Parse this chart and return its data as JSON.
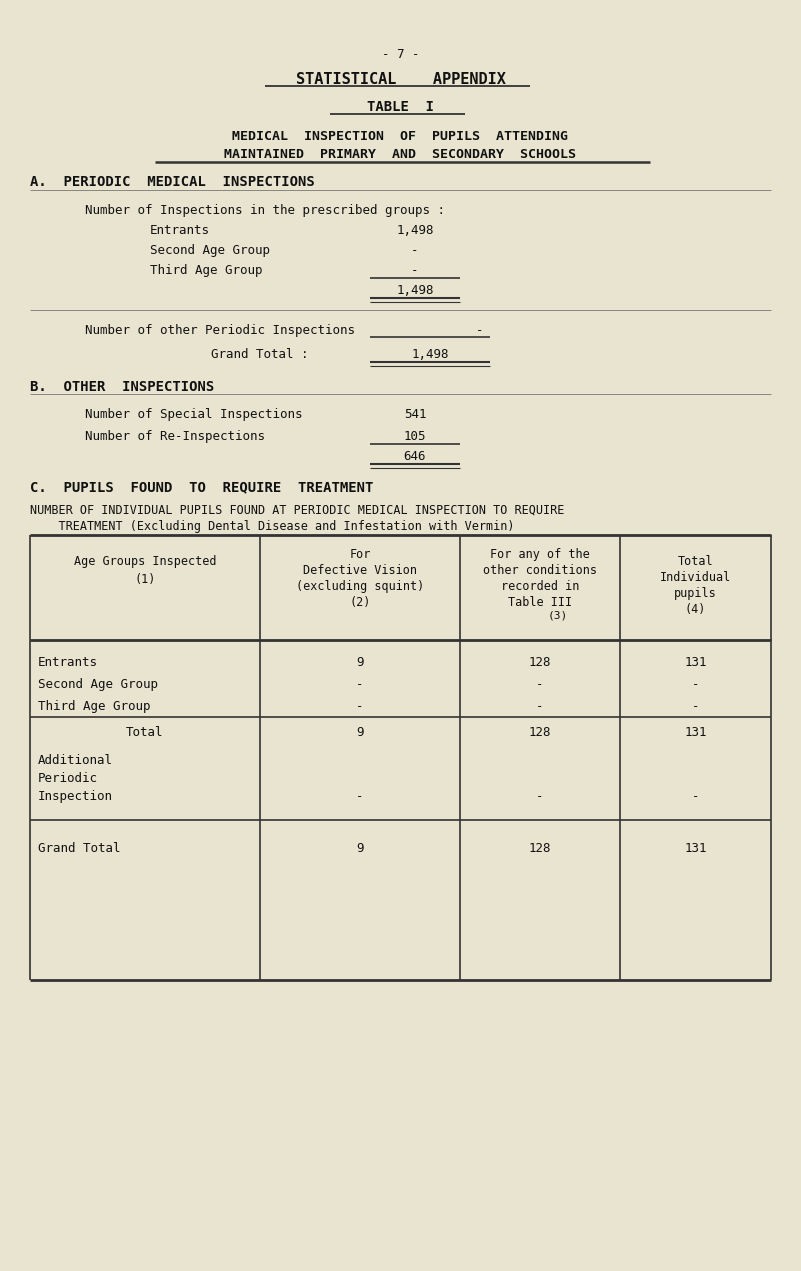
{
  "bg_color": "#e8e4d0",
  "text_color": "#1a1a1a",
  "page_num": "- 7 -",
  "title1": "STATISTICAL    APPENDIX",
  "title2": "TABLE  I",
  "subtitle1": "MEDICAL  INSPECTION  OF  PUPILS  ATTENDING",
  "subtitle2": "MAINTAINED  PRIMARY  AND  SECONDARY  SCHOOLS",
  "section_a": "A.  PERIODIC  MEDICAL  INSPECTIONS",
  "group_header": "Number of Inspections in the prescribed groups :",
  "entrants_label": "Entrants",
  "entrants_val": "1,498",
  "second_label": "Second Age Group",
  "second_val": "-",
  "third_label": "Third Age Group",
  "third_val": "-",
  "subtotal_val": "1,498",
  "other_label": "Number of other Periodic Inspections",
  "other_val": "-",
  "grand_total_a_label": "Grand Total :",
  "grand_total_a_val": "1,498",
  "section_b": "B.  OTHER  INSPECTIONS",
  "special_label": "Number of Special Inspections",
  "special_val": "541",
  "reinspect_label": "Number of Re-Inspections",
  "reinspect_val": "105",
  "b_total_val": "646",
  "section_c": "C.  PUPILS  FOUND  TO  REQUIRE  TREATMENT",
  "number_of_line1": "NUMBER OF INDIVIDUAL PUPILS FOUND AT PERIODIC MEDICAL INSPECTION TO REQUIRE",
  "number_of_line2": "    TREATMENT (Excluding Dental Disease and Infestation with Vermin)",
  "row1_label": "Entrants",
  "row1_col2": "9",
  "row1_col3": "128",
  "row1_col4": "131",
  "row2_label": "Second Age Group",
  "row2_col2": "-",
  "row2_col3": "-",
  "row2_col4": "-",
  "row3_label": "Third Age Group",
  "row3_col2": "-",
  "row3_col3": "-",
  "row3_col4": "-",
  "total_label": "Total",
  "total_col2": "9",
  "total_col3": "128",
  "total_col4": "131",
  "addl_label1": "Additional",
  "addl_label2": "Periodic",
  "addl_label3": "Inspection",
  "addl_col2": "-",
  "addl_col3": "-",
  "addl_col4": "-",
  "gt_label": "Grand Total",
  "gt_col2": "9",
  "gt_col3": "128",
  "gt_col4": "131",
  "fig_w": 8.01,
  "fig_h": 12.71,
  "dpi": 100
}
